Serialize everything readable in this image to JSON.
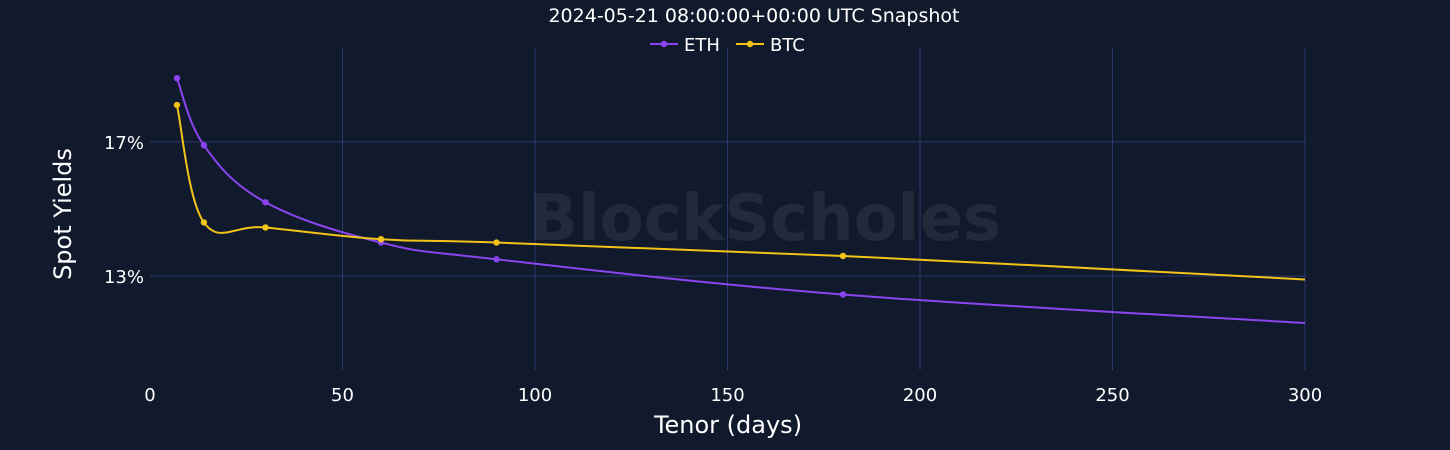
{
  "chart_data": {
    "type": "line",
    "title": "2024-05-21 08:00:00+00:00 UTC Snapshot",
    "xlabel": "Tenor (days)",
    "ylabel": "Spot Yields",
    "xlim": [
      0,
      300
    ],
    "ylim": [
      10.2,
      19.8
    ],
    "x_ticks": [
      0,
      50,
      100,
      150,
      200,
      250,
      300
    ],
    "y_ticks": [
      13,
      17
    ],
    "y_tick_suffix": "%",
    "grid": true,
    "legend_position": "top-center",
    "series": [
      {
        "name": "ETH",
        "color": "#8b45f0",
        "points": [
          [
            7,
            18.9
          ],
          [
            14,
            16.9
          ],
          [
            30,
            15.2
          ],
          [
            60,
            14.0
          ],
          [
            90,
            13.5
          ],
          [
            180,
            12.45
          ],
          [
            300,
            11.6
          ]
        ],
        "markers": [
          [
            7,
            18.9
          ],
          [
            14,
            16.9
          ],
          [
            30,
            15.2
          ],
          [
            60,
            14.0
          ],
          [
            90,
            13.5
          ],
          [
            180,
            12.45
          ]
        ]
      },
      {
        "name": "BTC",
        "color": "#f2c319",
        "points": [
          [
            7,
            18.1
          ],
          [
            14,
            14.6
          ],
          [
            30,
            14.45
          ],
          [
            60,
            14.1
          ],
          [
            90,
            14.0
          ],
          [
            180,
            13.6
          ],
          [
            300,
            12.9
          ]
        ],
        "markers": [
          [
            7,
            18.1
          ],
          [
            14,
            14.6
          ],
          [
            30,
            14.45
          ],
          [
            60,
            14.1
          ],
          [
            90,
            14.0
          ],
          [
            180,
            13.6
          ]
        ]
      }
    ]
  },
  "watermark": "BlockScholes"
}
